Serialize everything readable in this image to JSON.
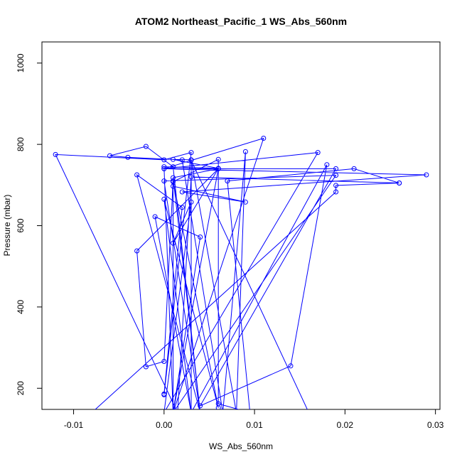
{
  "chart_data": {
    "type": "scatter",
    "title": "ATOM2 Northeast_Pacific_1 WS_Abs_560nm",
    "xlabel": "WS_Abs_560nm",
    "ylabel": "Pressure (mbar)",
    "xlim": [
      -0.0135,
      0.0305
    ],
    "ylim": [
      1052,
      148
    ],
    "y_reversed": true,
    "grid": false,
    "legend": "none",
    "line_color": "#0000ff",
    "marker": "open-circle",
    "connected": true,
    "x_ticks": [
      -0.01,
      0.0,
      0.01,
      0.02,
      0.03
    ],
    "x_tick_labels": [
      "-0.01",
      "0.00",
      "0.01",
      "0.02",
      "0.03"
    ],
    "y_ticks": [
      200,
      400,
      600,
      800,
      1000
    ],
    "y_tick_labels": [
      "200",
      "400",
      "600",
      "800",
      "1000"
    ],
    "series": [
      {
        "points": [
          [
            -0.008,
            140
          ],
          [
            0.019,
            683
          ],
          [
            0.019,
            699
          ],
          [
            0.026,
            705
          ],
          [
            0.003,
            720
          ],
          [
            0.0015,
            140
          ],
          [
            -0.012,
            775
          ],
          [
            0.0,
            762
          ],
          [
            0.003,
            780
          ],
          [
            0.0,
            184
          ],
          [
            0.0,
            186
          ],
          [
            0.002,
            645
          ],
          [
            -0.003,
            725
          ],
          [
            0.004,
            140
          ],
          [
            0.0,
            710
          ],
          [
            0.019,
            724
          ],
          [
            0.001,
            140
          ],
          [
            0.0,
            745
          ],
          [
            0.006,
            741
          ],
          [
            0.001,
            763
          ],
          [
            0.003,
            762
          ],
          [
            0.008,
            140
          ],
          [
            0.009,
            782
          ],
          [
            0.0065,
            140
          ],
          [
            0.002,
            762
          ],
          [
            -0.004,
            768
          ],
          [
            -0.006,
            772
          ],
          [
            -0.002,
            795
          ],
          [
            0.001,
            745
          ],
          [
            0.004,
            140
          ],
          [
            0.001,
            718
          ],
          [
            0.006,
            740
          ],
          [
            -0.003,
            538
          ],
          [
            -0.002,
            253
          ],
          [
            0.0,
            266
          ],
          [
            0.001,
            710
          ],
          [
            0.006,
            152
          ],
          [
            0.0,
            665
          ],
          [
            0.003,
            140
          ],
          [
            0.003,
            761
          ],
          [
            0.016,
            140
          ],
          [
            0.001,
            140
          ],
          [
            0.006,
            740
          ],
          [
            0.001,
            557
          ],
          [
            0.003,
            658
          ],
          [
            0.0,
            140
          ],
          [
            0.017,
            780
          ],
          [
            0.0,
            740
          ],
          [
            0.011,
            815
          ],
          [
            0.001,
            140
          ],
          [
            0.001,
            697
          ],
          [
            0.009,
            658
          ],
          [
            0.002,
            683
          ],
          [
            0.029,
            725
          ],
          [
            0.0,
            740
          ],
          [
            0.019,
            740
          ],
          [
            0.004,
            157
          ],
          [
            0.014,
            255
          ],
          [
            0.018,
            750
          ],
          [
            0.003,
            140
          ],
          [
            -0.001,
            622
          ],
          [
            0.004,
            572
          ],
          [
            0.001,
            140
          ],
          [
            0.001,
            708
          ],
          [
            0.006,
            763
          ],
          [
            0.006,
            162
          ],
          [
            0.0095,
            140
          ],
          [
            0.007,
            710
          ],
          [
            0.021,
            740
          ],
          [
            0.026,
            705
          ]
        ]
      }
    ]
  }
}
